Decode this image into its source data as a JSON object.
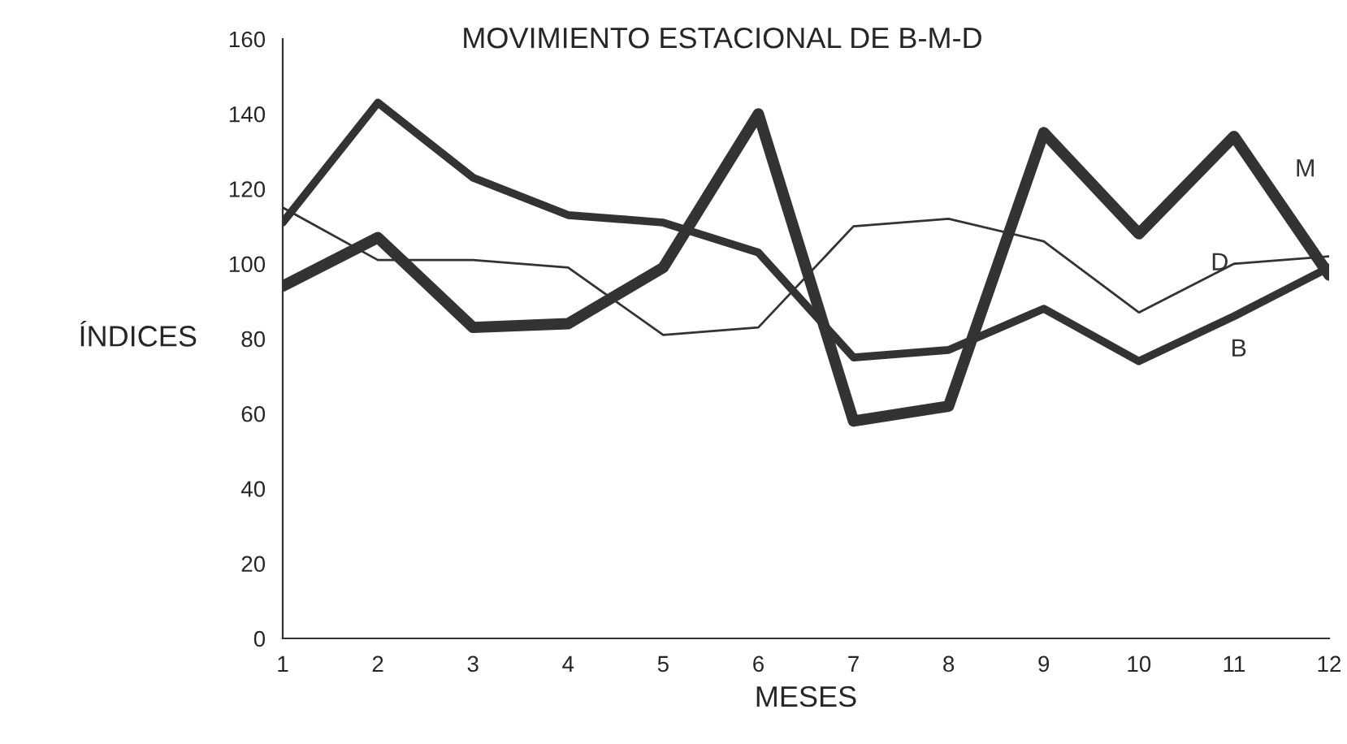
{
  "chart_data": {
    "type": "line",
    "title": "MOVIMIENTO ESTACIONAL DE B-M-D",
    "xlabel": "MESES",
    "ylabel": "ÍNDICES",
    "x": [
      1,
      2,
      3,
      4,
      5,
      6,
      7,
      8,
      9,
      10,
      11,
      12
    ],
    "series": [
      {
        "name": "M",
        "color": "#333333",
        "values": [
          94,
          107,
          83,
          84,
          99,
          140,
          58,
          62,
          135,
          108,
          134,
          97
        ]
      },
      {
        "name": "D",
        "color": "#333333",
        "values": [
          115,
          101,
          101,
          99,
          81,
          83,
          110,
          112,
          106,
          87,
          100,
          102
        ]
      },
      {
        "name": "B",
        "color": "#333333",
        "values": [
          111,
          143,
          123,
          113,
          111,
          103,
          75,
          77,
          88,
          74,
          86,
          99
        ]
      }
    ],
    "xlim": [
      1,
      12
    ],
    "xticks": [
      1,
      2,
      3,
      4,
      5,
      6,
      7,
      8,
      9,
      10,
      11,
      12
    ],
    "ylim": [
      0,
      160
    ],
    "yticks": [
      0,
      20,
      40,
      60,
      80,
      100,
      120,
      140,
      160
    ],
    "grid": false,
    "legend": false,
    "marker": "none",
    "line_style": "solid"
  }
}
